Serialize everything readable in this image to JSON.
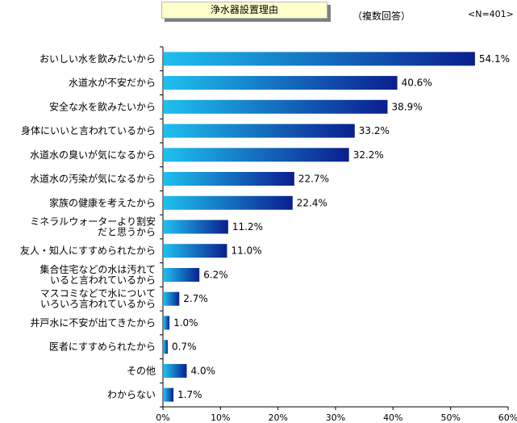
{
  "header": {
    "title": "浄水器設置理由",
    "note": "（複数回答）",
    "sample": "<N=401>"
  },
  "colors": {
    "bar_dark": "#0a1f8f",
    "bar_light": "#1fc0ee",
    "title_bg": "#ffffcc"
  },
  "chart_data": {
    "type": "bar",
    "orientation": "horizontal",
    "title": "浄水器設置理由",
    "categories": [
      [
        "おいしい水を飲みたいから"
      ],
      [
        "水道水が不安だから"
      ],
      [
        "安全な水を飲みたいから"
      ],
      [
        "身体にいいと言われているから"
      ],
      [
        "水道水の臭いが気になるから"
      ],
      [
        "水道水の汚染が気になるから"
      ],
      [
        "家族の健康を考えたから"
      ],
      [
        "ミネラルウォーターより割安",
        "だと思うから"
      ],
      [
        "友人・知人にすすめられたから"
      ],
      [
        "集合住宅などの水は汚れて",
        "いると言われているから"
      ],
      [
        "マスコミなどで水について",
        "いろいろ言われているから"
      ],
      [
        "井戸水に不安が出てきたから"
      ],
      [
        "医者にすすめられたから"
      ],
      [
        "その他"
      ],
      [
        "わからない"
      ]
    ],
    "values": [
      54.1,
      40.6,
      38.9,
      33.2,
      32.2,
      22.7,
      22.4,
      11.2,
      11.0,
      6.2,
      2.7,
      1.0,
      0.7,
      4.0,
      1.7
    ],
    "value_labels": [
      "54.1%",
      "40.6%",
      "38.9%",
      "33.2%",
      "32.2%",
      "22.7%",
      "22.4%",
      "11.2%",
      "11.0%",
      "6.2%",
      "2.7%",
      "1.0%",
      "0.7%",
      "4.0%",
      "1.7%"
    ],
    "xlim": [
      0,
      60
    ],
    "xticks": [
      0,
      10,
      20,
      30,
      40,
      50,
      60
    ],
    "xtick_labels": [
      "0%",
      "10%",
      "20%",
      "30%",
      "40%",
      "50%",
      "60%"
    ],
    "grid": false
  }
}
